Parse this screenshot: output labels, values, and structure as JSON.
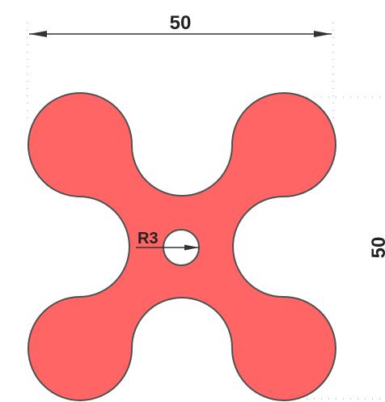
{
  "drawing": {
    "width_dimension": "50",
    "height_dimension": "50",
    "hole_radius_label": "R3"
  },
  "colors": {
    "part_fill": "#ff6565",
    "part_outline": "#505050",
    "dimension_line": "#333333",
    "extension_line": "#9a9a9a",
    "hole_fill": "#ffffff"
  }
}
